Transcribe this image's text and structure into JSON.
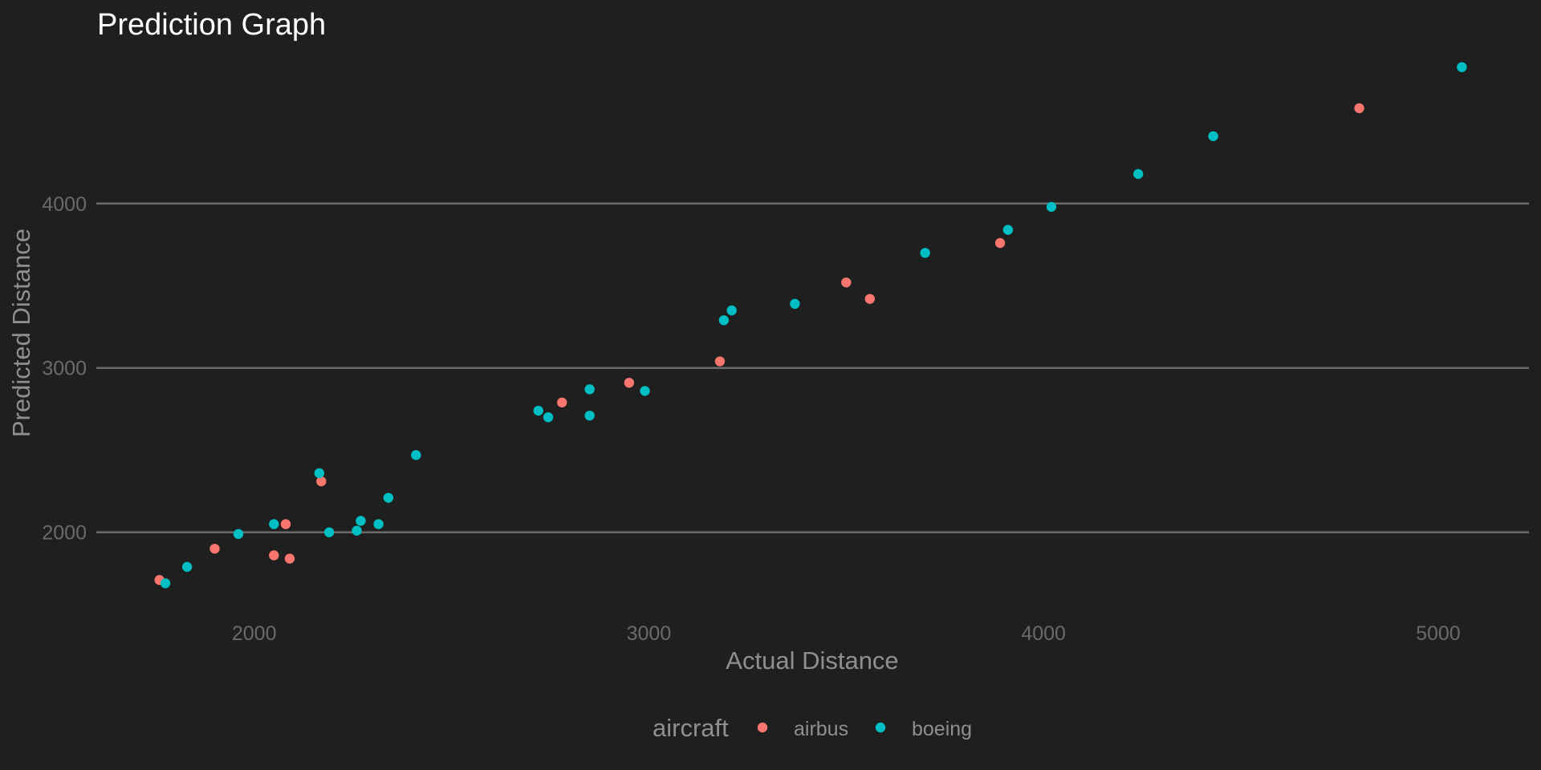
{
  "chart_data": {
    "type": "scatter",
    "title": "Prediction Graph",
    "xlabel": "Actual Distance",
    "ylabel": "Predicted Distance",
    "xlim": [
      1600,
      5230
    ],
    "ylim": [
      1530,
      4970
    ],
    "x_ticks": [
      2000,
      3000,
      4000,
      5000
    ],
    "y_ticks": [
      2000,
      3000,
      4000
    ],
    "grid": "horizontal major lines only",
    "legend": {
      "title": "aircraft",
      "position": "bottom",
      "entries": [
        "airbus",
        "boeing"
      ]
    },
    "colors": {
      "background": "#1f1f1f",
      "grid": "#6b6b6b",
      "airbus": "#f8766d",
      "boeing": "#00bfc4"
    },
    "series": [
      {
        "name": "airbus",
        "points": [
          [
            1760,
            1710
          ],
          [
            1900,
            1900
          ],
          [
            2050,
            1860
          ],
          [
            2080,
            2050
          ],
          [
            2090,
            1840
          ],
          [
            2170,
            2310
          ],
          [
            2780,
            2790
          ],
          [
            2950,
            2910
          ],
          [
            3180,
            3040
          ],
          [
            3500,
            3520
          ],
          [
            3560,
            3420
          ],
          [
            3890,
            3760
          ],
          [
            4800,
            4580
          ]
        ]
      },
      {
        "name": "boeing",
        "points": [
          [
            1775,
            1690
          ],
          [
            1830,
            1790
          ],
          [
            1960,
            1990
          ],
          [
            2050,
            2050
          ],
          [
            2165,
            2360
          ],
          [
            2190,
            2000
          ],
          [
            2260,
            2010
          ],
          [
            2270,
            2070
          ],
          [
            2315,
            2050
          ],
          [
            2340,
            2210
          ],
          [
            2410,
            2470
          ],
          [
            2720,
            2740
          ],
          [
            2745,
            2700
          ],
          [
            2850,
            2870
          ],
          [
            2850,
            2710
          ],
          [
            2990,
            2860
          ],
          [
            3190,
            3290
          ],
          [
            3210,
            3350
          ],
          [
            3370,
            3390
          ],
          [
            3700,
            3700
          ],
          [
            3910,
            3840
          ],
          [
            4020,
            3980
          ],
          [
            4240,
            4180
          ],
          [
            4430,
            4410
          ],
          [
            5060,
            4830
          ]
        ]
      }
    ]
  }
}
